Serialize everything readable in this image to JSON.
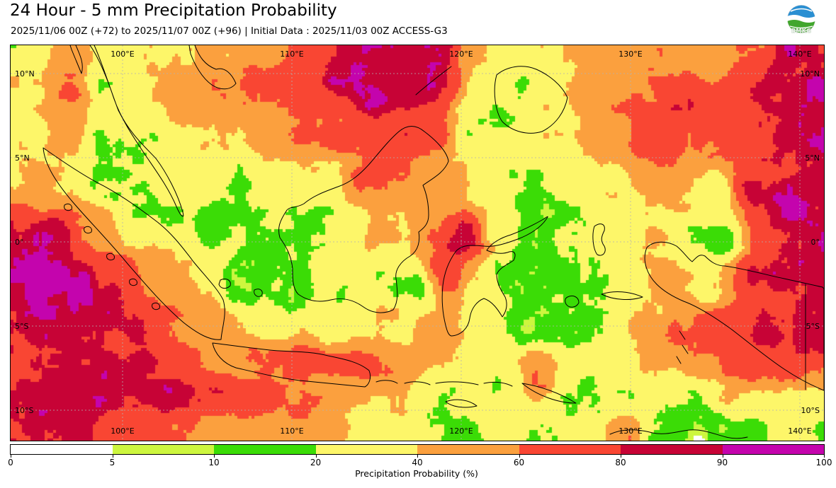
{
  "header": {
    "title": "24 Hour - 5 mm Precipitation Probability",
    "subtitle": "2025/11/06 00Z (+72) to 2025/11/07 00Z (+96) | Initial Data : 2025/11/03 00Z ACCESS-G3",
    "logo_text": "BMKG"
  },
  "map": {
    "lat_labels": [
      "10°N",
      "5°N",
      "0°",
      "5°S",
      "10°S"
    ],
    "lon_labels": [
      "100°E",
      "110°E",
      "120°E",
      "130°E",
      "140°E"
    ]
  },
  "colorbar": {
    "label": "Precipitation Probability (%)",
    "tick_labels": [
      "0",
      "5",
      "10",
      "20",
      "40",
      "60",
      "80",
      "90",
      "100"
    ],
    "segment_colors": [
      "#ffffff",
      "#cdf63f",
      "#3bdc06",
      "#fdf669",
      "#fba03e",
      "#f94633",
      "#c70336",
      "#c404ad"
    ]
  },
  "chart_data": {
    "type": "heatmap",
    "title": "24 Hour - 5 mm Precipitation Probability",
    "valid_period": "2025/11/06 00Z (+72) to 2025/11/07 00Z (+96)",
    "initial_data": "2025/11/03 00Z ACCESS-G3",
    "colorbar_label": "Precipitation Probability (%)",
    "scale_breaks_percent": [
      0,
      5,
      10,
      20,
      40,
      60,
      80,
      90,
      100
    ],
    "scale_colors": [
      "#ffffff",
      "#cdf63f",
      "#3bdc06",
      "#fdf669",
      "#fba03e",
      "#f94633",
      "#c70336",
      "#c404ad"
    ],
    "lon_gridlines": [
      "100°E",
      "110°E",
      "120°E",
      "130°E",
      "140°E"
    ],
    "lat_gridlines": [
      "10°N",
      "5°N",
      "0°",
      "5°S",
      "10°S"
    ]
  }
}
